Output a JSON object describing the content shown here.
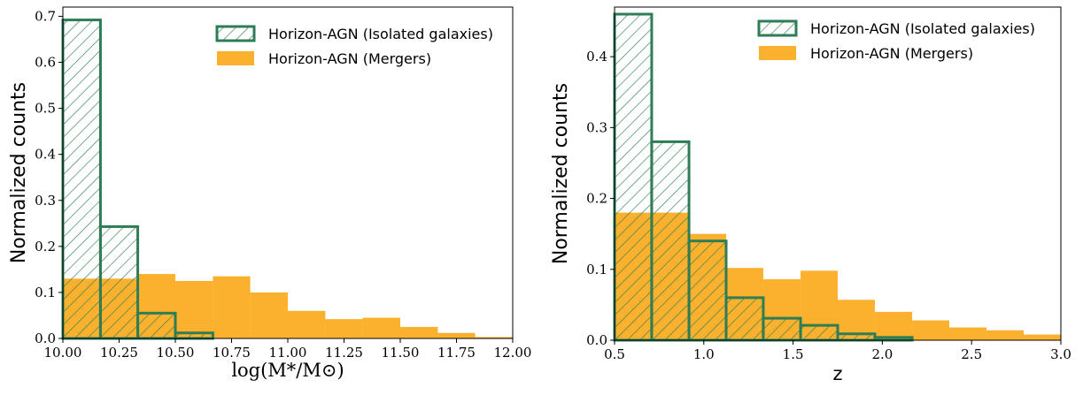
{
  "colors": {
    "isolated": "#2e7d55",
    "mergers": "#fbb12d"
  },
  "chart_data": [
    {
      "type": "bar",
      "xlabel": "log(M*/M⊙)",
      "ylabel": "Normalized counts",
      "xlim": [
        10.0,
        12.0
      ],
      "ylim": [
        0.0,
        0.72
      ],
      "xticks": [
        10.0,
        10.25,
        10.5,
        10.75,
        11.0,
        11.25,
        11.5,
        11.75,
        12.0
      ],
      "xtick_labels": [
        "10.00",
        "10.25",
        "10.50",
        "10.75",
        "11.00",
        "11.25",
        "11.50",
        "11.75",
        "12.00"
      ],
      "yticks": [
        0.0,
        0.1,
        0.2,
        0.3,
        0.4,
        0.5,
        0.6,
        0.7
      ],
      "ytick_labels": [
        "0.0",
        "0.1",
        "0.2",
        "0.3",
        "0.4",
        "0.5",
        "0.6",
        "0.7"
      ],
      "legend_position": "top-right",
      "series": [
        {
          "name": "Horizon-AGN (Isolated galaxies)",
          "style": "hatched-outline",
          "bin_edges": [
            10.0,
            10.167,
            10.333,
            10.5,
            10.667,
            10.833,
            11.0,
            11.167,
            11.333,
            11.5,
            11.667,
            11.833,
            12.0
          ],
          "values": [
            0.692,
            0.243,
            0.055,
            0.012,
            0.0,
            0.0,
            0.0,
            0.0,
            0.0,
            0.0,
            0.0,
            0.0
          ]
        },
        {
          "name": "Horizon-AGN (Mergers)",
          "style": "filled",
          "bin_edges": [
            10.0,
            10.167,
            10.333,
            10.5,
            10.667,
            10.833,
            11.0,
            11.167,
            11.333,
            11.5,
            11.667,
            11.833,
            12.0
          ],
          "values": [
            0.13,
            0.13,
            0.14,
            0.125,
            0.135,
            0.1,
            0.06,
            0.042,
            0.045,
            0.025,
            0.012,
            0.003
          ]
        }
      ]
    },
    {
      "type": "bar",
      "xlabel": "z",
      "ylabel": "Normalized counts",
      "xlim": [
        0.5,
        3.0
      ],
      "ylim": [
        0.0,
        0.47
      ],
      "xticks": [
        0.5,
        1.0,
        1.5,
        2.0,
        2.5,
        3.0
      ],
      "xtick_labels": [
        "0.5",
        "1.0",
        "1.5",
        "2.0",
        "2.5",
        "3.0"
      ],
      "yticks": [
        0.0,
        0.1,
        0.2,
        0.3,
        0.4
      ],
      "ytick_labels": [
        "0.0",
        "0.1",
        "0.2",
        "0.3",
        "0.4"
      ],
      "legend_position": "top-right",
      "series": [
        {
          "name": "Horizon-AGN (Isolated galaxies)",
          "style": "hatched-outline",
          "bin_edges": [
            0.5,
            0.708,
            0.917,
            1.125,
            1.333,
            1.542,
            1.75,
            1.958,
            2.167,
            2.375,
            2.583,
            2.792,
            3.0
          ],
          "values": [
            0.46,
            0.28,
            0.14,
            0.06,
            0.031,
            0.021,
            0.009,
            0.004,
            0.0,
            0.0,
            0.0,
            0.0
          ]
        },
        {
          "name": "Horizon-AGN (Mergers)",
          "style": "filled",
          "bin_edges": [
            0.5,
            0.708,
            0.917,
            1.125,
            1.333,
            1.542,
            1.75,
            1.958,
            2.167,
            2.375,
            2.583,
            2.792,
            3.0
          ],
          "values": [
            0.18,
            0.18,
            0.15,
            0.102,
            0.086,
            0.098,
            0.057,
            0.04,
            0.028,
            0.018,
            0.014,
            0.008
          ]
        }
      ]
    }
  ]
}
